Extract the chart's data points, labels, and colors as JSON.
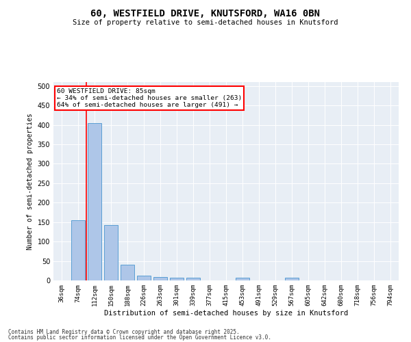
{
  "title1": "60, WESTFIELD DRIVE, KNUTSFORD, WA16 0BN",
  "title2": "Size of property relative to semi-detached houses in Knutsford",
  "xlabel": "Distribution of semi-detached houses by size in Knutsford",
  "ylabel": "Number of semi-detached properties",
  "categories": [
    "36sqm",
    "74sqm",
    "112sqm",
    "150sqm",
    "188sqm",
    "226sqm",
    "263sqm",
    "301sqm",
    "339sqm",
    "377sqm",
    "415sqm",
    "453sqm",
    "491sqm",
    "529sqm",
    "567sqm",
    "605sqm",
    "642sqm",
    "680sqm",
    "718sqm",
    "756sqm",
    "794sqm"
  ],
  "values": [
    0,
    155,
    405,
    143,
    40,
    12,
    9,
    7,
    7,
    0,
    0,
    7,
    0,
    0,
    7,
    0,
    0,
    0,
    0,
    0,
    0
  ],
  "bar_color": "#aec6e8",
  "bar_edge_color": "#5a9fd4",
  "vline_x_index": 1.5,
  "vline_color": "red",
  "annotation_title": "60 WESTFIELD DRIVE: 85sqm",
  "annotation_line2": "← 34% of semi-detached houses are smaller (263)",
  "annotation_line3": "64% of semi-detached houses are larger (491) →",
  "ylim": [
    0,
    510
  ],
  "yticks": [
    0,
    50,
    100,
    150,
    200,
    250,
    300,
    350,
    400,
    450,
    500
  ],
  "bg_color": "#e8eef5",
  "footer1": "Contains HM Land Registry data © Crown copyright and database right 2025.",
  "footer2": "Contains public sector information licensed under the Open Government Licence v3.0."
}
